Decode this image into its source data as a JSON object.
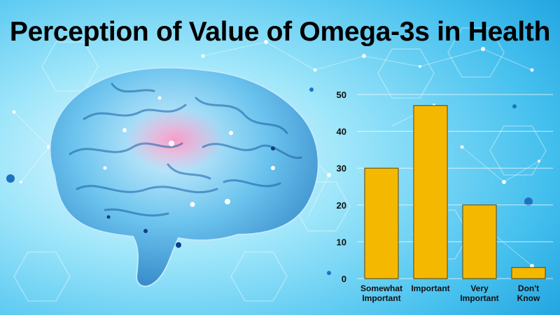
{
  "title": "Perception of Value of Omega-3s in Health",
  "colors": {
    "bar_fill": "#F5B800",
    "bar_stroke": "#5A4300",
    "background_light": "#E8FAFF",
    "background_mid": "#7FDAF5",
    "background_dark": "#1FA8E0",
    "brain": "#4FB6E8",
    "highlight": "#F06AA0"
  },
  "chart_data": {
    "type": "bar",
    "categories": [
      [
        "Somewhat",
        "Important"
      ],
      [
        "Important"
      ],
      [
        "Very",
        "Important"
      ],
      [
        "Don't",
        "Know"
      ]
    ],
    "values": [
      30,
      47,
      20,
      3
    ],
    "yticks": [
      0,
      10,
      20,
      30,
      40,
      50
    ],
    "ylim": [
      0,
      50
    ],
    "grid": true,
    "title": "",
    "xlabel": "",
    "ylabel": ""
  }
}
